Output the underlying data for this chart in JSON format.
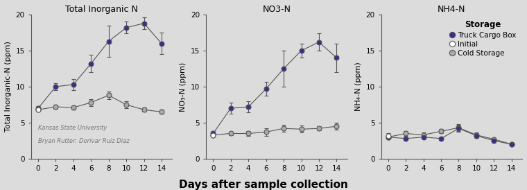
{
  "background_color": "#dcdcdc",
  "days": [
    0,
    2,
    4,
    6,
    8,
    10,
    12,
    14
  ],
  "panel_titles": [
    "Total Inorganic N",
    "NO3-N",
    "NH4-N"
  ],
  "xlabel": "Days after sample collection",
  "ylabels": [
    "Total Inorganic-N (ppm)",
    "NO₃-N (ppm)",
    "NH₄-N (ppm)"
  ],
  "ylim": [
    0,
    20
  ],
  "yticks": [
    0,
    5,
    10,
    15,
    20
  ],
  "tin_truck": [
    7.0,
    10.0,
    10.3,
    13.2,
    16.3,
    18.2,
    18.8,
    16.0
  ],
  "tin_truck_err": [
    0.3,
    0.5,
    0.8,
    1.2,
    2.2,
    0.8,
    0.8,
    1.5
  ],
  "tin_initial": [
    6.8
  ],
  "tin_initial_err": [
    0.2
  ],
  "tin_cold": [
    6.8,
    7.2,
    7.1,
    7.8,
    8.8,
    7.5,
    6.8,
    6.5
  ],
  "tin_cold_err": [
    0.2,
    0.3,
    0.3,
    0.5,
    0.5,
    0.5,
    0.3,
    0.3
  ],
  "no3_truck": [
    3.5,
    7.0,
    7.2,
    9.7,
    12.5,
    15.0,
    16.2,
    14.0
  ],
  "no3_truck_err": [
    0.3,
    0.8,
    0.8,
    1.0,
    2.5,
    1.0,
    1.2,
    2.0
  ],
  "no3_initial": [
    3.3
  ],
  "no3_initial_err": [
    0.2
  ],
  "no3_cold": [
    3.3,
    3.5,
    3.5,
    3.7,
    4.2,
    4.1,
    4.2,
    4.5
  ],
  "no3_cold_err": [
    0.2,
    0.2,
    0.3,
    0.5,
    0.5,
    0.5,
    0.3,
    0.5
  ],
  "nh4_truck": [
    3.0,
    2.8,
    3.0,
    2.8,
    4.2,
    3.2,
    2.5,
    2.0
  ],
  "nh4_truck_err": [
    0.2,
    0.2,
    0.2,
    0.2,
    0.5,
    0.3,
    0.2,
    0.2
  ],
  "nh4_initial": [
    3.2
  ],
  "nh4_initial_err": [
    0.3
  ],
  "nh4_cold": [
    3.0,
    3.5,
    3.3,
    3.8,
    4.3,
    3.3,
    2.7,
    2.0
  ],
  "nh4_cold_err": [
    0.2,
    0.3,
    0.3,
    0.3,
    0.5,
    0.3,
    0.2,
    0.2
  ],
  "truck_color": "#3d2b8e",
  "initial_color": "#ffffff",
  "cold_color": "#aaaaaa",
  "line_color": "#555555",
  "marker_edge_color": "#555555",
  "title_fontsize": 9,
  "label_fontsize": 8,
  "tick_fontsize": 7.5,
  "annotation_fontsize": 6,
  "annotation_text": [
    "Kansas State University",
    "Bryan Rutter; Dorivar Ruiz Diaz"
  ],
  "legend_title": "Storage",
  "legend_labels": [
    "Truck Cargo Box",
    "Initial",
    "Cold Storage"
  ],
  "xlabel_fontsize": 11
}
